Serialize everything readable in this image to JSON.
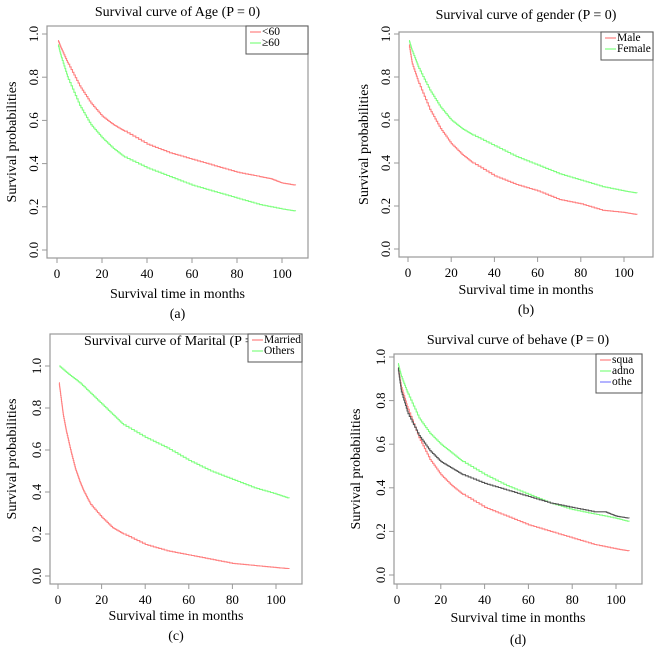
{
  "figure": {
    "panels": [
      "(a)",
      "(b)",
      "(c)",
      "(d)"
    ]
  },
  "chart_data": [
    {
      "type": "line",
      "title": "Survival curve of Age (P = 0)",
      "xlabel": "Survival time in months",
      "ylabel": "Survival probabilities",
      "panel_label": "(a)",
      "xlim": [
        0,
        106
      ],
      "ylim": [
        0,
        1
      ],
      "xticks": [
        0,
        20,
        40,
        60,
        80,
        100
      ],
      "yticks": [
        "0.0",
        "0.2",
        "0.4",
        "0.6",
        "0.8",
        "1.0"
      ],
      "legend_position": "top-right",
      "grid": false,
      "series": [
        {
          "name": "<60",
          "color": "#ff8080",
          "x": [
            0.5,
            2,
            5,
            10,
            15,
            20,
            25,
            30,
            40,
            50,
            60,
            70,
            80,
            90,
            95,
            100,
            106
          ],
          "y": [
            0.97,
            0.93,
            0.86,
            0.76,
            0.68,
            0.62,
            0.58,
            0.55,
            0.49,
            0.45,
            0.42,
            0.39,
            0.36,
            0.34,
            0.33,
            0.31,
            0.3
          ]
        },
        {
          "name": "≥60",
          "color": "#80ff80",
          "x": [
            0.5,
            2,
            5,
            10,
            15,
            20,
            25,
            30,
            40,
            50,
            60,
            70,
            80,
            90,
            100,
            106
          ],
          "y": [
            0.95,
            0.89,
            0.79,
            0.67,
            0.58,
            0.52,
            0.47,
            0.43,
            0.38,
            0.34,
            0.3,
            0.27,
            0.24,
            0.21,
            0.19,
            0.18
          ]
        }
      ]
    },
    {
      "type": "line",
      "title": "Survival curve of gender (P = 0)",
      "xlabel": "Survival time in months",
      "ylabel": "Survival probabilities",
      "panel_label": "(b)",
      "xlim": [
        0,
        106
      ],
      "ylim": [
        0,
        1
      ],
      "xticks": [
        0,
        20,
        40,
        60,
        80,
        100
      ],
      "yticks": [
        "0.0",
        "0.2",
        "0.4",
        "0.6",
        "0.8",
        "1.0"
      ],
      "legend_position": "top-right",
      "grid": false,
      "series": [
        {
          "name": "Male",
          "color": "#ff8080",
          "x": [
            0.5,
            2,
            5,
            10,
            15,
            20,
            25,
            30,
            40,
            50,
            60,
            70,
            80,
            90,
            100,
            106
          ],
          "y": [
            0.95,
            0.86,
            0.77,
            0.65,
            0.56,
            0.49,
            0.44,
            0.4,
            0.34,
            0.3,
            0.27,
            0.23,
            0.21,
            0.18,
            0.17,
            0.16
          ]
        },
        {
          "name": "Female",
          "color": "#80ff80",
          "x": [
            0.5,
            2,
            5,
            10,
            15,
            20,
            25,
            30,
            40,
            50,
            60,
            70,
            80,
            90,
            100,
            106
          ],
          "y": [
            0.97,
            0.92,
            0.84,
            0.74,
            0.66,
            0.6,
            0.56,
            0.53,
            0.48,
            0.43,
            0.39,
            0.35,
            0.32,
            0.29,
            0.27,
            0.26
          ]
        }
      ]
    },
    {
      "type": "line",
      "title": "Survival curve of Marital (P = 0)",
      "xlabel": "Survival time in months",
      "ylabel": "Survival probabilities",
      "panel_label": "(c)",
      "xlim": [
        0,
        106
      ],
      "ylim": [
        0,
        1
      ],
      "xticks": [
        0,
        20,
        40,
        60,
        80,
        100
      ],
      "yticks": [
        "0.0",
        "0.2",
        "0.4",
        "0.6",
        "0.8",
        "1.0"
      ],
      "legend_position": "top-right",
      "grid": false,
      "series": [
        {
          "name": "Married",
          "color": "#ff8080",
          "x": [
            0.5,
            1.5,
            2.5,
            4,
            6,
            8,
            10,
            12,
            15,
            20,
            25,
            30,
            40,
            50,
            60,
            70,
            80,
            90,
            100,
            106
          ],
          "y": [
            0.92,
            0.84,
            0.76,
            0.68,
            0.59,
            0.51,
            0.45,
            0.4,
            0.34,
            0.28,
            0.23,
            0.2,
            0.15,
            0.12,
            0.1,
            0.08,
            0.06,
            0.05,
            0.04,
            0.035
          ]
        },
        {
          "name": "Others",
          "color": "#80ff80",
          "x": [
            0.5,
            5,
            10,
            15,
            20,
            25,
            30,
            40,
            50,
            60,
            70,
            80,
            90,
            100,
            106
          ],
          "y": [
            1.0,
            0.96,
            0.92,
            0.87,
            0.82,
            0.77,
            0.72,
            0.66,
            0.61,
            0.55,
            0.5,
            0.46,
            0.42,
            0.39,
            0.37
          ]
        }
      ]
    },
    {
      "type": "line",
      "title": "Survival curve of behave (P = 0)",
      "xlabel": "Survival time in months",
      "ylabel": "Survival probabilities",
      "panel_label": "(d)",
      "xlim": [
        0,
        106
      ],
      "ylim": [
        0,
        1
      ],
      "xticks": [
        0,
        20,
        40,
        60,
        80,
        100
      ],
      "yticks": [
        "0.0",
        "0.2",
        "0.4",
        "0.6",
        "0.8",
        "1.0"
      ],
      "legend_position": "top-right",
      "grid": false,
      "series": [
        {
          "name": "squa",
          "color": "#ff8080",
          "x": [
            0.5,
            2,
            5,
            10,
            15,
            20,
            25,
            30,
            40,
            50,
            60,
            70,
            80,
            90,
            100,
            106
          ],
          "y": [
            0.95,
            0.86,
            0.76,
            0.63,
            0.53,
            0.46,
            0.41,
            0.37,
            0.31,
            0.27,
            0.23,
            0.2,
            0.17,
            0.14,
            0.12,
            0.11
          ]
        },
        {
          "name": "adno",
          "color": "#80ff80",
          "x": [
            0.5,
            2,
            5,
            10,
            15,
            20,
            25,
            30,
            40,
            50,
            60,
            70,
            80,
            90,
            100,
            106
          ],
          "y": [
            0.97,
            0.91,
            0.83,
            0.72,
            0.65,
            0.6,
            0.56,
            0.52,
            0.46,
            0.41,
            0.37,
            0.33,
            0.3,
            0.28,
            0.26,
            0.245
          ]
        },
        {
          "name": "othe",
          "color": "#8080ff",
          "render_color": "#555555",
          "x": [
            0.5,
            2,
            5,
            10,
            15,
            20,
            25,
            30,
            40,
            50,
            60,
            70,
            80,
            90,
            95,
            100,
            106
          ],
          "y": [
            0.95,
            0.84,
            0.74,
            0.64,
            0.57,
            0.52,
            0.49,
            0.46,
            0.42,
            0.39,
            0.36,
            0.33,
            0.31,
            0.29,
            0.29,
            0.27,
            0.26
          ]
        }
      ]
    }
  ]
}
